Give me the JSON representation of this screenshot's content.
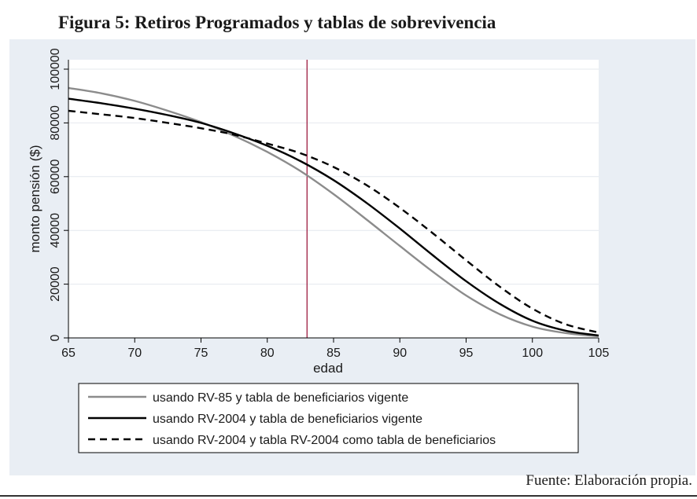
{
  "title": "Figura 5: Retiros Programados y tablas de sobrevivencia",
  "source": "Fuente: Elaboración propia.",
  "chart_data": {
    "type": "line",
    "title": "",
    "xlabel": "edad",
    "ylabel": "monto pensión ($)",
    "xlim": [
      65,
      105
    ],
    "ylim": [
      0,
      100000
    ],
    "xticks": [
      65,
      70,
      75,
      80,
      85,
      90,
      95,
      100,
      105
    ],
    "yticks": [
      0,
      20000,
      40000,
      60000,
      80000,
      100000
    ],
    "grid": true,
    "legend_position": "bottom",
    "reference_line_x": 83,
    "x": [
      65,
      67.5,
      70,
      72.5,
      75,
      77.5,
      80,
      82.5,
      85,
      87.5,
      90,
      92.5,
      95,
      97.5,
      100,
      102.5,
      105
    ],
    "series": [
      {
        "name": "usando RV-85 y tabla de beneficiarios vigente",
        "color": "#8c8c8c",
        "style": "solid",
        "values": [
          93000,
          91000,
          88200,
          84500,
          80300,
          75200,
          69200,
          62100,
          53500,
          44000,
          34200,
          24600,
          15800,
          8900,
          4200,
          1800,
          600
        ]
      },
      {
        "name": "usando RV-2004 y tabla de beneficiarios vigente",
        "color": "#000000",
        "style": "solid",
        "values": [
          89000,
          87300,
          85300,
          82900,
          80000,
          76100,
          71500,
          65800,
          58700,
          50200,
          40700,
          30700,
          21100,
          12800,
          6400,
          2700,
          900
        ]
      },
      {
        "name": "usando RV-2004 y tabla RV-2004 como tabla de beneficiarios",
        "color": "#000000",
        "style": "dashed",
        "values": [
          84500,
          83200,
          81800,
          80000,
          78000,
          75600,
          72300,
          68700,
          63600,
          56800,
          48400,
          38900,
          28900,
          19200,
          10900,
          5100,
          2000
        ]
      }
    ]
  }
}
